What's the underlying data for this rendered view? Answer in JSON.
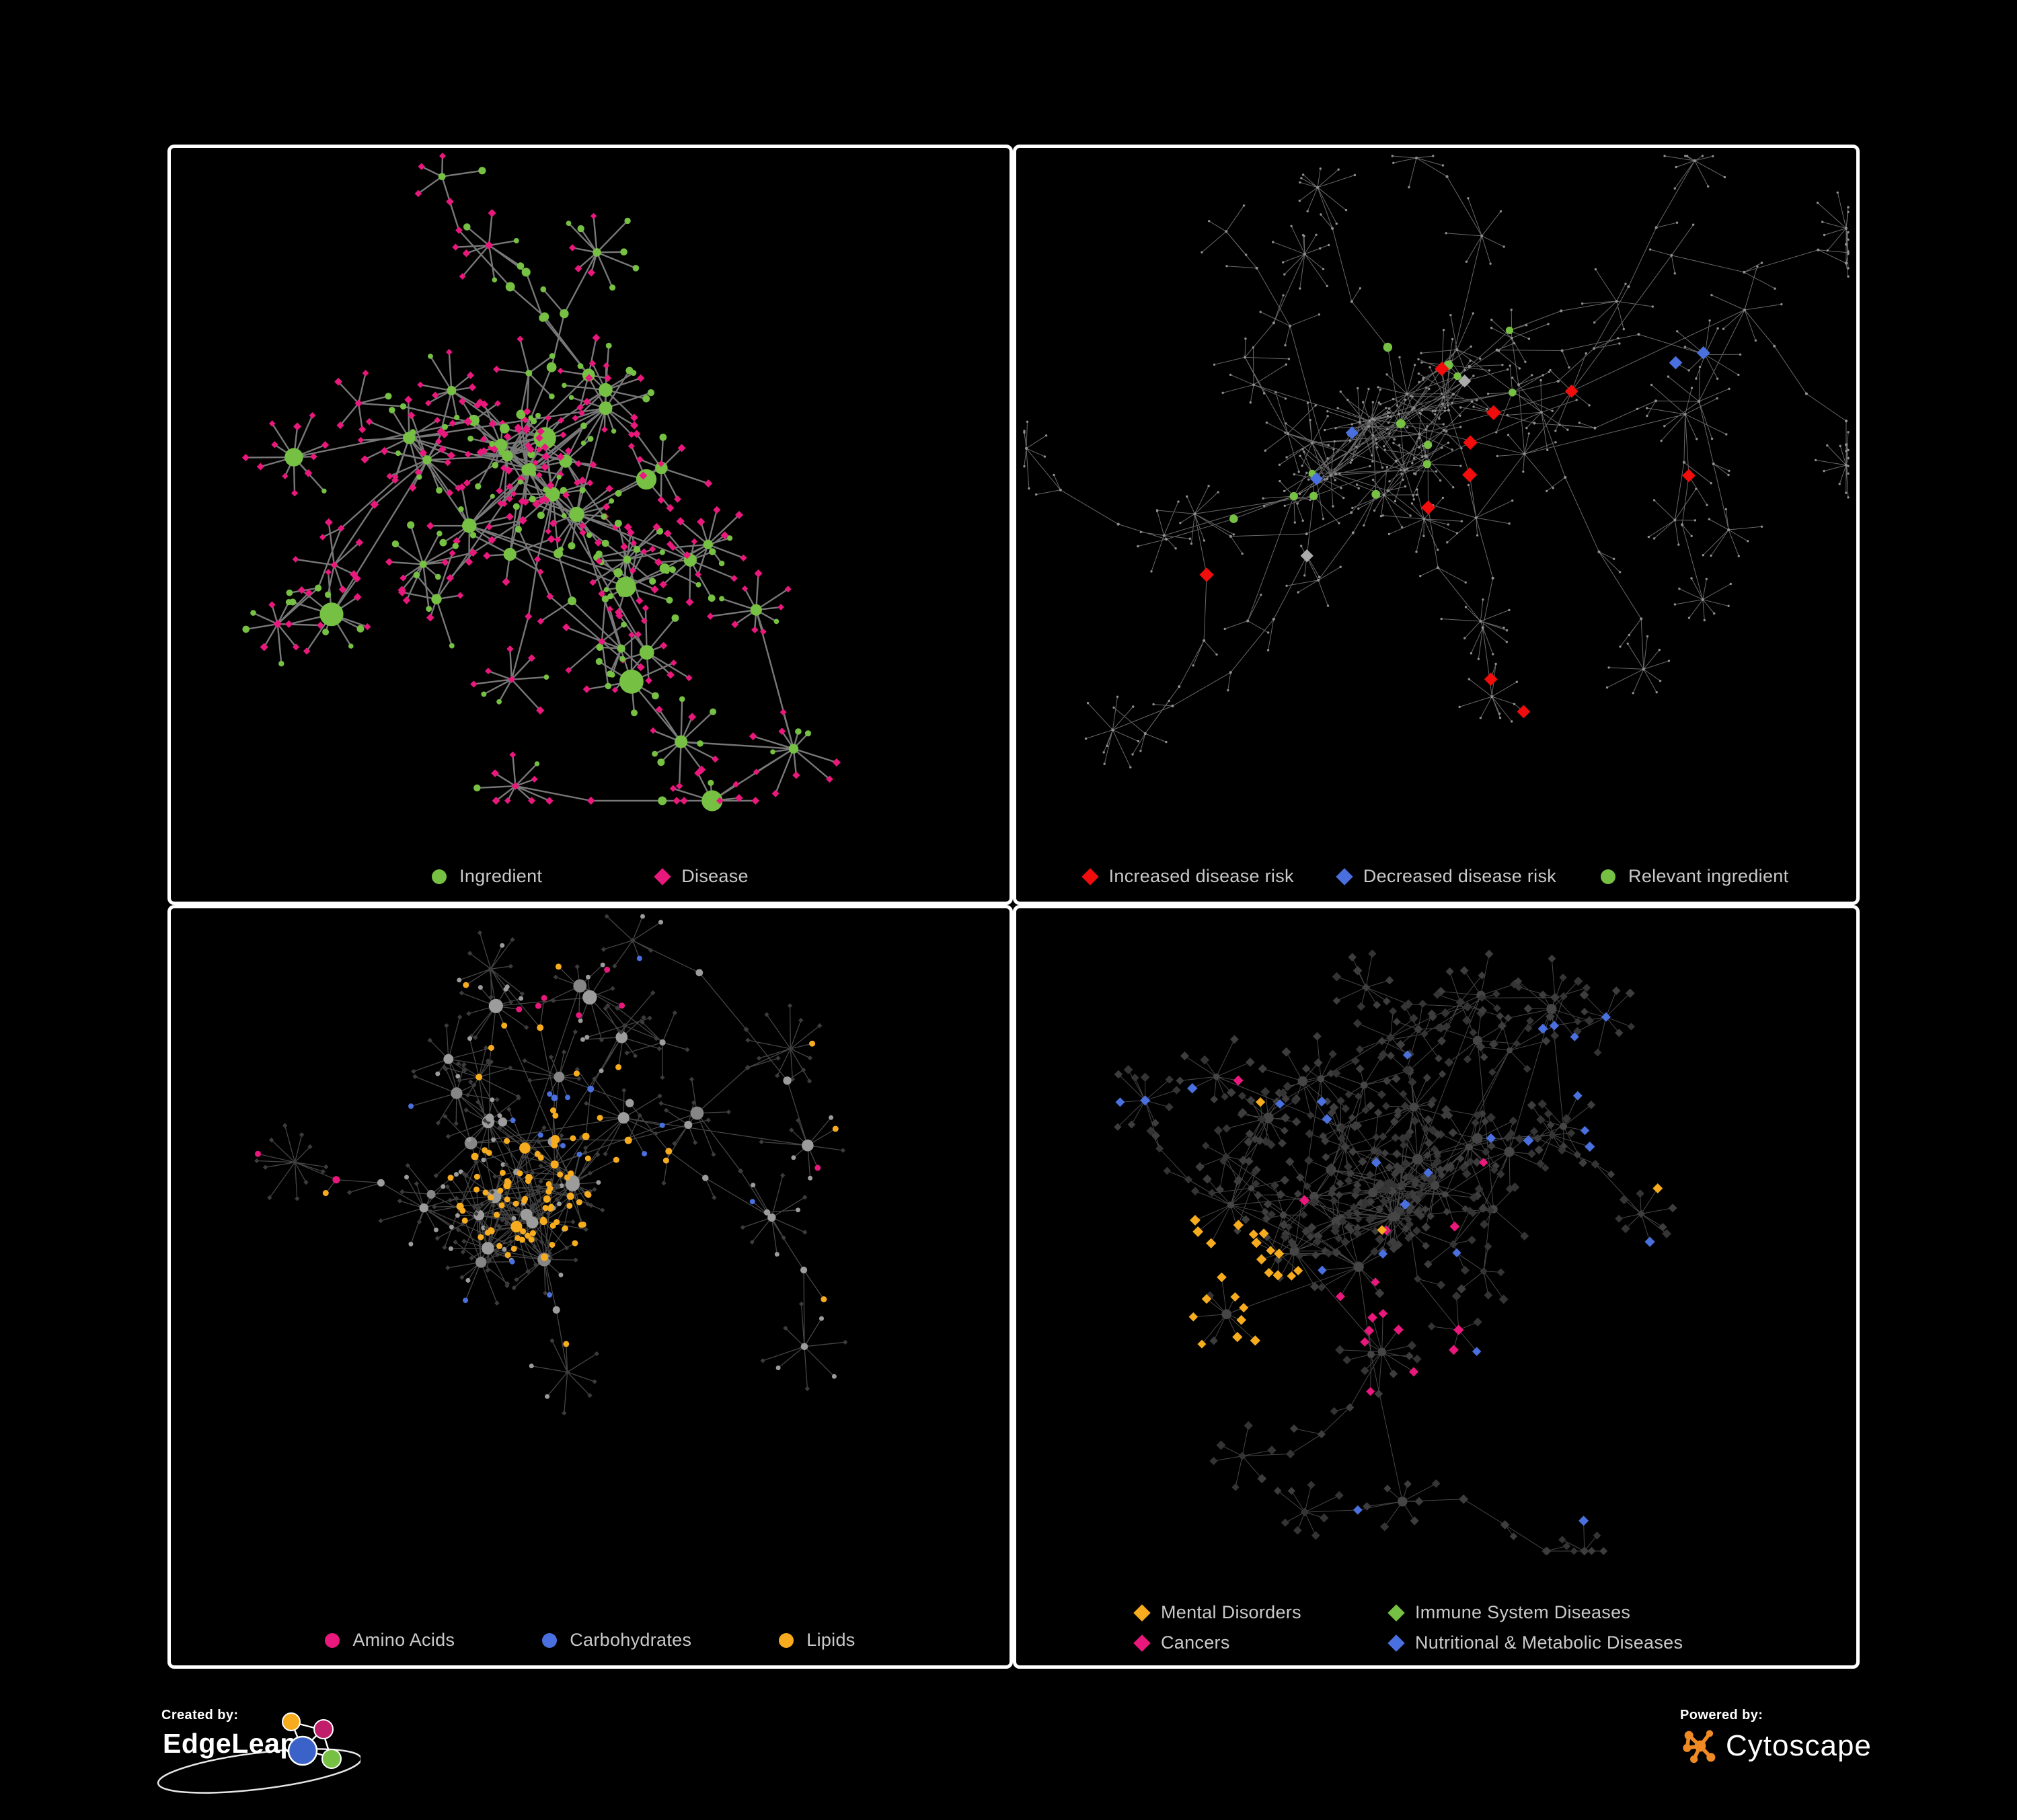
{
  "page": {
    "background": "#000000",
    "panel_border_color": "#FFFFFF",
    "legend_text_color": "#C9C9C9"
  },
  "colors": {
    "green": "#76C043",
    "pink": "#E9187C",
    "red": "#F20D0D",
    "blue": "#4A70DF",
    "orange": "#F6AC1E",
    "silver": "#ABABAB"
  },
  "panels": [
    {
      "id": "ingredient-disease",
      "legend": [
        {
          "label": "Ingredient",
          "shape": "circle",
          "color": "#76C043"
        },
        {
          "label": "Disease",
          "shape": "diamond",
          "color": "#E9187C"
        }
      ]
    },
    {
      "id": "disease-risk",
      "legend": [
        {
          "label": "Increased disease risk",
          "shape": "diamond",
          "color": "#F20D0D"
        },
        {
          "label": "Decreased disease risk",
          "shape": "diamond",
          "color": "#4A70DF"
        },
        {
          "label": "Relevant ingredient",
          "shape": "circle",
          "color": "#76C043"
        }
      ]
    },
    {
      "id": "nutrient-classes",
      "legend": [
        {
          "label": "Amino Acids",
          "shape": "circle",
          "color": "#E9187C"
        },
        {
          "label": "Carbohydrates",
          "shape": "circle",
          "color": "#4A70DF"
        },
        {
          "label": "Lipids",
          "shape": "circle",
          "color": "#F6AC1E"
        }
      ]
    },
    {
      "id": "disease-categories",
      "legend": [
        {
          "label": "Mental Disorders",
          "shape": "diamond",
          "color": "#F6AC1E"
        },
        {
          "label": "Immune System Diseases",
          "shape": "diamond",
          "color": "#76C043"
        },
        {
          "label": "Cancers",
          "shape": "diamond",
          "color": "#E9187C"
        },
        {
          "label": "Nutritional & Metabolic Diseases",
          "shape": "diamond",
          "color": "#4A70DF"
        }
      ]
    }
  ],
  "footer": {
    "created_by": {
      "prefix": "Created by:",
      "brand": "EdgeLeap"
    },
    "powered_by": {
      "prefix": "Powered by:",
      "brand": "Cytoscape",
      "logo_color": "#F08A24"
    }
  }
}
